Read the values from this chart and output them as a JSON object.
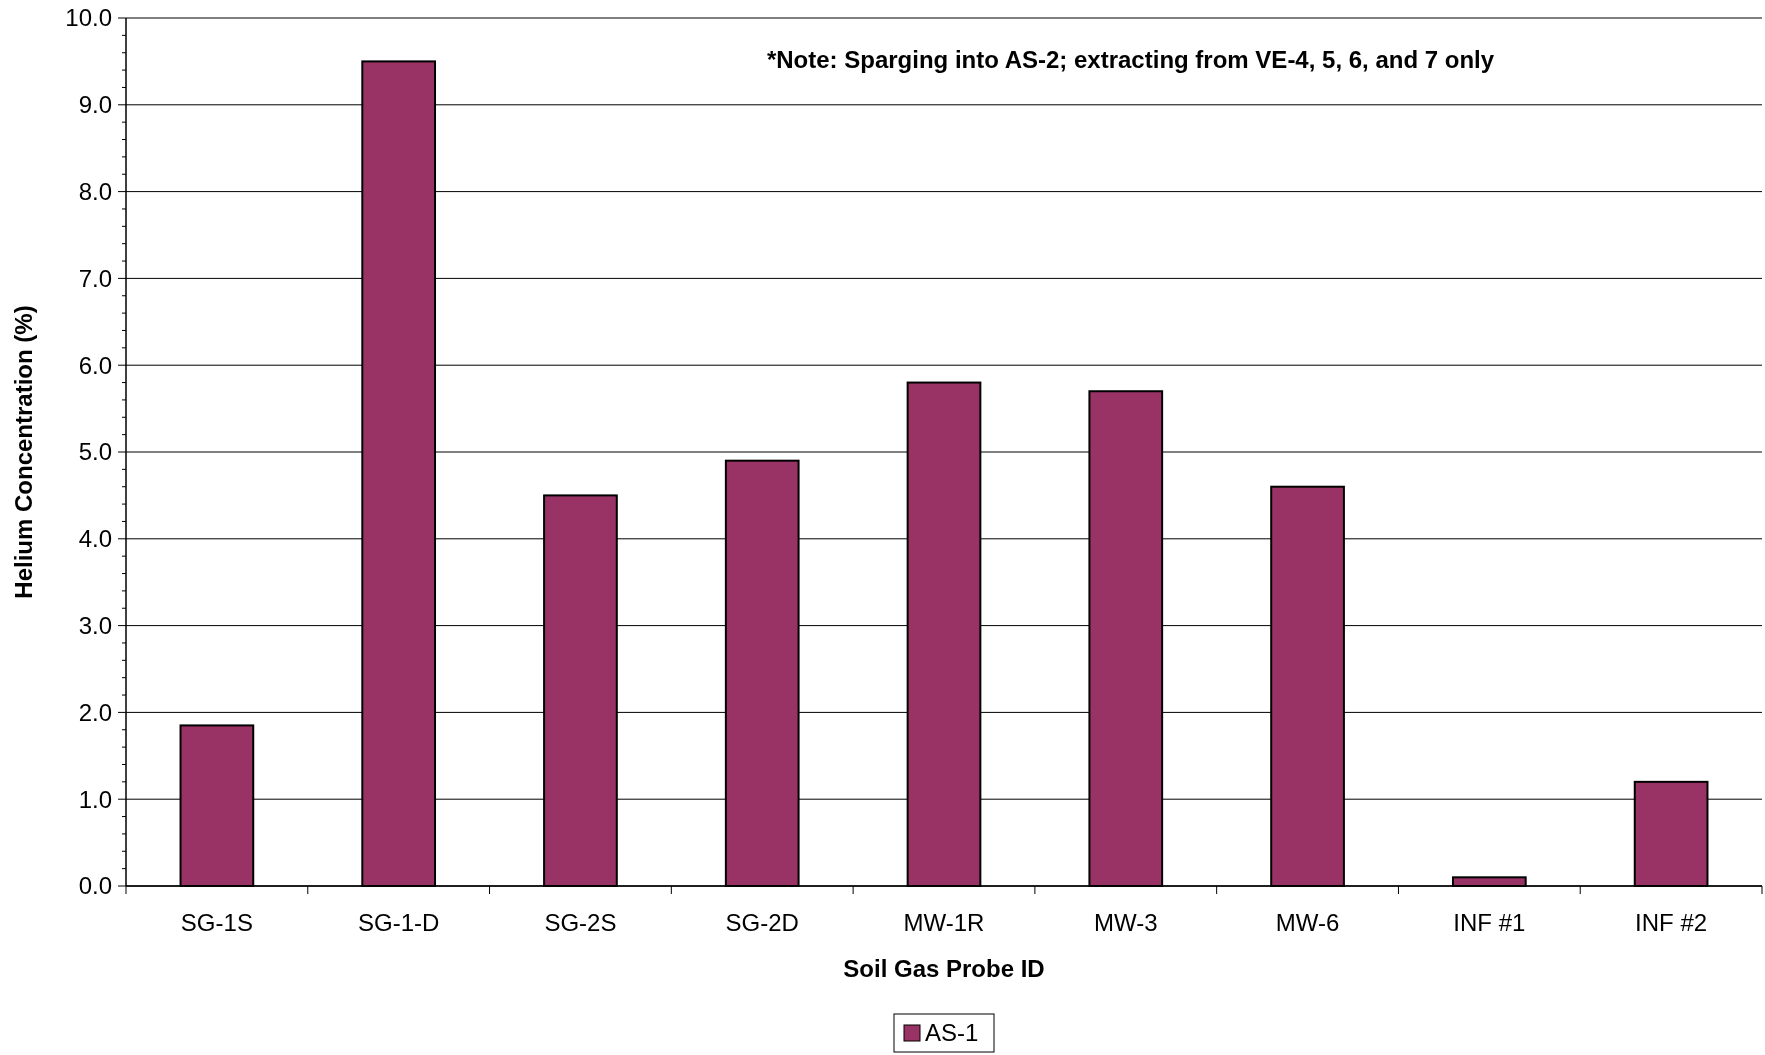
{
  "chart_data": {
    "type": "bar",
    "xlabel": "Soil Gas Probe ID",
    "ylabel": "Helium Concentration (%)",
    "annotations": [
      "*Note: Sparging into AS-2; extracting from VE-4, 5, 6, and 7 only"
    ],
    "categories": [
      "SG-1S",
      "SG-1-D",
      "SG-2S",
      "SG-2D",
      "MW-1R",
      "MW-3",
      "MW-6",
      "INF #1",
      "INF #2"
    ],
    "series": [
      {
        "name": "AS-1",
        "color": "#993366",
        "values": [
          1.85,
          9.5,
          4.5,
          4.9,
          5.8,
          5.7,
          4.6,
          0.1,
          1.2
        ]
      }
    ],
    "ylim": [
      0,
      10
    ],
    "yticks": [
      {
        "value": 0,
        "label": "0.0"
      },
      {
        "value": 1,
        "label": "1.0"
      },
      {
        "value": 2,
        "label": "2.0"
      },
      {
        "value": 3,
        "label": "3.0"
      },
      {
        "value": 4,
        "label": "4.0"
      },
      {
        "value": 5,
        "label": "5.0"
      },
      {
        "value": 6,
        "label": "6.0"
      },
      {
        "value": 7,
        "label": "7.0"
      },
      {
        "value": 8,
        "label": "8.0"
      },
      {
        "value": 9,
        "label": "9.0"
      },
      {
        "value": 10,
        "label": "10.0"
      }
    ],
    "grid": "y",
    "legend": "bottom"
  }
}
